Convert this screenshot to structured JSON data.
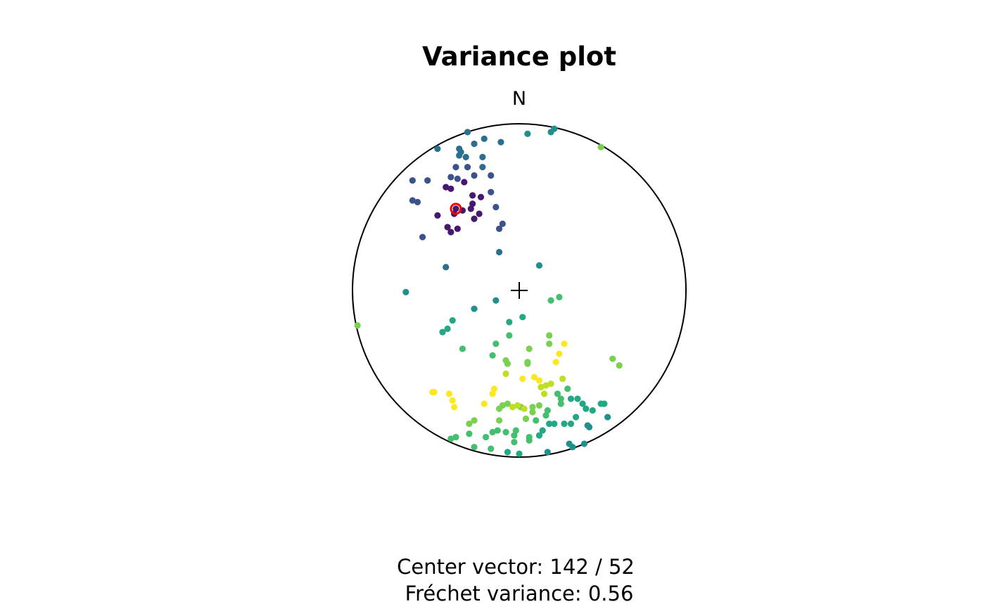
{
  "chart_data": {
    "type": "stereonet",
    "title": "Variance plot",
    "north_label": "N",
    "annotations": [
      "Center vector: 142 / 52",
      "Fréchet variance: 0.56"
    ],
    "xlim": [
      -1,
      1
    ],
    "ylim": [
      -1,
      1
    ],
    "center": {
      "x": -0.38,
      "y": 0.49,
      "color": "#ee0000"
    },
    "series": [
      {
        "color": "#46196e",
        "x": [
          -0.38,
          -0.34,
          -0.39,
          -0.49,
          -0.28,
          -0.28,
          -0.23,
          -0.33,
          -0.44,
          -0.41,
          -0.24,
          -0.27,
          -0.43,
          -0.37,
          -0.41,
          -0.29
        ],
        "y": [
          0.49,
          0.48,
          0.46,
          0.45,
          0.52,
          0.57,
          0.56,
          0.65,
          0.62,
          0.61,
          0.46,
          0.43,
          0.38,
          0.37,
          0.35,
          0.49
        ]
      },
      {
        "color": "#3b528b",
        "x": [
          -0.41,
          -0.37,
          -0.27,
          -0.17,
          -0.17,
          -0.38,
          -0.31,
          -0.14,
          -0.1,
          -0.12,
          -0.58,
          -0.64,
          -0.61,
          -0.64,
          -0.55
        ],
        "y": [
          0.68,
          0.67,
          0.69,
          0.69,
          0.59,
          0.74,
          0.74,
          0.5,
          0.4,
          0.37,
          0.32,
          0.54,
          0.53,
          0.66,
          0.66
        ]
      },
      {
        "color": "#2c6e8e",
        "x": [
          -0.36,
          -0.35,
          -0.36,
          -0.32,
          -0.22,
          -0.22,
          -0.27,
          -0.21,
          -0.11,
          -0.49,
          -0.31,
          -0.44,
          -0.12
        ],
        "y": [
          0.85,
          0.83,
          0.81,
          0.8,
          0.8,
          0.74,
          0.88,
          0.91,
          0.89,
          0.85,
          0.95,
          0.14,
          0.23
        ]
      },
      {
        "color": "#21908c",
        "x": [
          -0.68,
          -0.27,
          -0.14,
          0.12,
          0.05,
          0.19,
          0.21,
          0.53,
          0.41,
          0.42,
          0.3,
          0.32,
          0.39,
          0.17
        ],
        "y": [
          -0.01,
          -0.11,
          -0.06,
          0.15,
          0.94,
          0.95,
          0.97,
          -0.76,
          -0.81,
          -0.82,
          -0.92,
          -0.94,
          -0.92,
          -0.97
        ]
      },
      {
        "color": "#22a884",
        "x": [
          -0.4,
          -0.43,
          -0.46,
          0.02,
          -0.06,
          0.31,
          0.35,
          0.38,
          0.4,
          0.44,
          0.49,
          0.51,
          0.34,
          0.31,
          0.27,
          0.21,
          0.18,
          0.14,
          0.12,
          0.0,
          -0.07
        ],
        "y": [
          -0.18,
          -0.23,
          -0.25,
          -0.16,
          -0.19,
          -0.65,
          -0.65,
          -0.68,
          -0.71,
          -0.72,
          -0.68,
          -0.68,
          -0.76,
          -0.8,
          -0.8,
          -0.8,
          -0.8,
          -0.84,
          -0.87,
          -0.98,
          -0.97
        ]
      },
      {
        "color": "#44bf70",
        "x": [
          0.19,
          0.24,
          -0.34,
          -0.16,
          -0.14,
          -0.06,
          0.23,
          0.25,
          0.25,
          0.29,
          0.17,
          0.16,
          0.1,
          0.06,
          0.06,
          -0.02,
          -0.03,
          -0.03,
          -0.08,
          -0.13,
          -0.16,
          -0.2,
          -0.27,
          -0.17,
          -0.38,
          -0.41,
          -0.3
        ],
        "y": [
          -0.06,
          -0.04,
          -0.35,
          -0.39,
          -0.32,
          -0.27,
          -0.62,
          -0.65,
          -0.68,
          -0.59,
          -0.72,
          -0.75,
          -0.78,
          -0.88,
          -0.9,
          -0.84,
          -0.87,
          -0.91,
          -0.85,
          -0.84,
          -0.85,
          -0.88,
          -0.94,
          -0.95,
          -0.88,
          -0.89,
          -0.86
        ]
      },
      {
        "color": "#7ad151",
        "x": [
          0.49,
          -0.97,
          0.56,
          0.6,
          0.06,
          0.18,
          0.18,
          -0.08,
          -0.07,
          0.05,
          0.05,
          -0.12,
          -0.27,
          -0.3,
          0.04,
          0.08,
          0.12,
          0.01,
          -0.07,
          -0.1,
          -0.12,
          0.08
        ],
        "y": [
          0.86,
          -0.21,
          -0.41,
          -0.45,
          -0.35,
          -0.32,
          -0.27,
          -0.42,
          -0.44,
          -0.44,
          -0.43,
          -0.78,
          -0.78,
          -0.8,
          -0.77,
          -0.73,
          -0.69,
          -0.7,
          -0.68,
          -0.69,
          -0.71,
          -0.7
        ]
      },
      {
        "color": "#bddf26",
        "x": [
          0.26,
          0.13,
          0.16,
          0.19,
          0.15,
          -0.04,
          -0.01,
          0.03,
          -0.08
        ],
        "y": [
          -0.53,
          -0.58,
          -0.57,
          -0.56,
          -0.62,
          -0.7,
          -0.69,
          -0.71,
          -0.5
        ]
      },
      {
        "color": "#fde725",
        "x": [
          0.27,
          0.24,
          0.22,
          0.02,
          0.09,
          0.12,
          -0.15,
          -0.16,
          -0.21,
          -0.39,
          -0.4,
          -0.42,
          -0.52,
          -0.51
        ],
        "y": [
          -0.32,
          -0.38,
          -0.43,
          -0.53,
          -0.52,
          -0.54,
          -0.59,
          -0.62,
          -0.68,
          -0.7,
          -0.66,
          -0.62,
          -0.61,
          -0.61
        ]
      }
    ]
  }
}
